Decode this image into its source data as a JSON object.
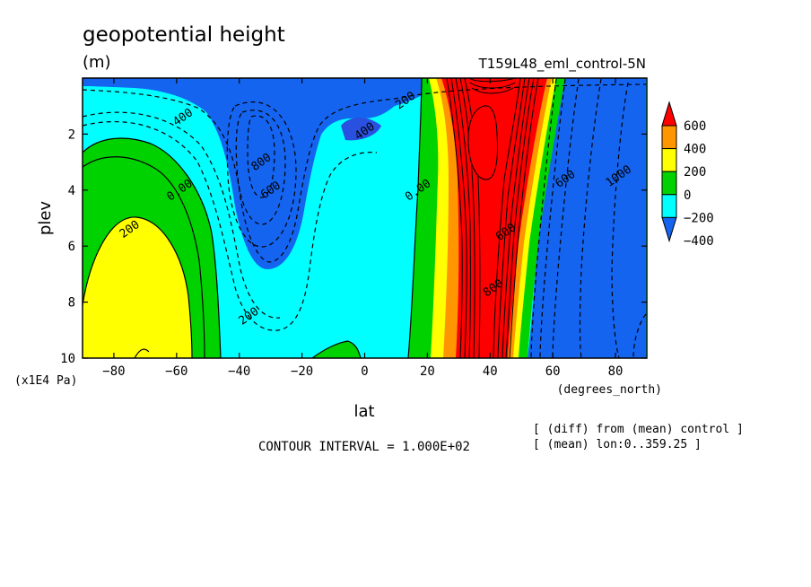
{
  "chart_data": {
    "type": "heatmap",
    "title": "geopotential height",
    "units": "(m)",
    "subtitle_right": "T159L48_eml_control-5N",
    "xlabel": "lat",
    "xunits": "(degrees_north)",
    "ylabel": "plev",
    "yunits": "(x1E4 Pa)",
    "xlim": [
      -90,
      90
    ],
    "ylim": [
      10,
      0
    ],
    "x_ticks": [
      -80,
      -60,
      -40,
      -20,
      0,
      20,
      40,
      60,
      80
    ],
    "x_tick_labels": [
      "−80",
      "−60",
      "−40",
      "−20",
      "0",
      "20",
      "40",
      "60",
      "80"
    ],
    "y_ticks": [
      2,
      4,
      6,
      8,
      10
    ],
    "y_tick_labels": [
      "2",
      "4",
      "6",
      "8",
      "10"
    ],
    "colorbar": {
      "levels": [
        -400,
        -200,
        0,
        200,
        400,
        600
      ],
      "labels": [
        "600",
        "400",
        "200",
        "0",
        "−200",
        "−400"
      ],
      "colors": [
        "#1464f0",
        "#00ffff",
        "#00d200",
        "#ffff00",
        "#ff9600",
        "#ff0000"
      ]
    },
    "contour_labels": [
      {
        "text": "400",
        "lat": -58,
        "plev": 1.4
      },
      {
        "text": "600",
        "lat": -30,
        "plev": 4.0
      },
      {
        "text": "800",
        "lat": -33,
        "plev": 3.0
      },
      {
        "text": "400",
        "lat": 0,
        "plev": 1.9
      },
      {
        "text": "200",
        "lat": 13,
        "plev": 0.8
      },
      {
        "text": "0.00",
        "lat": -59,
        "plev": 4.0
      },
      {
        "text": "200",
        "lat": -75,
        "plev": 5.4
      },
      {
        "text": "200",
        "lat": -37,
        "plev": 8.5
      },
      {
        "text": "0.00",
        "lat": 17,
        "plev": 4.0
      },
      {
        "text": "800",
        "lat": 41,
        "plev": 7.5
      },
      {
        "text": "600",
        "lat": 45,
        "plev": 5.5
      },
      {
        "text": "1000",
        "lat": 81,
        "plev": 3.5
      },
      {
        "text": "600",
        "lat": 64,
        "plev": 3.6
      }
    ],
    "contour_interval_text": "CONTOUR INTERVAL = 1.000E+02",
    "annotation_diff": "[ (diff) from (mean) control ]",
    "annotation_mean": "[ (mean) lon:0..359.25 ]"
  }
}
